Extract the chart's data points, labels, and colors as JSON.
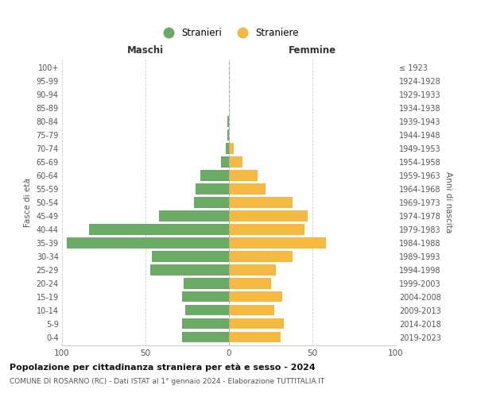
{
  "age_groups": [
    "0-4",
    "5-9",
    "10-14",
    "15-19",
    "20-24",
    "25-29",
    "30-34",
    "35-39",
    "40-44",
    "45-49",
    "50-54",
    "55-59",
    "60-64",
    "65-69",
    "70-74",
    "75-79",
    "80-84",
    "85-89",
    "90-94",
    "95-99",
    "100+"
  ],
  "birth_years": [
    "2019-2023",
    "2014-2018",
    "2009-2013",
    "2004-2008",
    "1999-2003",
    "1994-1998",
    "1989-1993",
    "1984-1988",
    "1979-1983",
    "1974-1978",
    "1969-1973",
    "1964-1968",
    "1959-1963",
    "1954-1958",
    "1949-1953",
    "1944-1948",
    "1939-1943",
    "1934-1938",
    "1929-1933",
    "1924-1928",
    "≤ 1923"
  ],
  "maschi": [
    28,
    28,
    26,
    28,
    27,
    47,
    46,
    97,
    84,
    42,
    21,
    20,
    17,
    5,
    2,
    1,
    1,
    0,
    0,
    0,
    0
  ],
  "femmine": [
    31,
    33,
    27,
    32,
    25,
    28,
    38,
    58,
    45,
    47,
    38,
    22,
    17,
    8,
    3,
    0,
    0,
    0,
    0,
    0,
    0
  ],
  "maschi_color": "#6aaa64",
  "femmine_color": "#f5b942",
  "title": "Popolazione per cittadinanza straniera per età e sesso - 2024",
  "subtitle": "COMUNE DI ROSARNO (RC) - Dati ISTAT al 1° gennaio 2024 - Elaborazione TUTTITALIA.IT",
  "left_label": "Maschi",
  "right_label": "Femmine",
  "ylabel_left": "Fasce di età",
  "ylabel_right": "Anni di nascita",
  "legend_maschi": "Stranieri",
  "legend_femmine": "Straniere",
  "xlim": 100,
  "background_color": "#ffffff",
  "grid_color": "#cccccc"
}
